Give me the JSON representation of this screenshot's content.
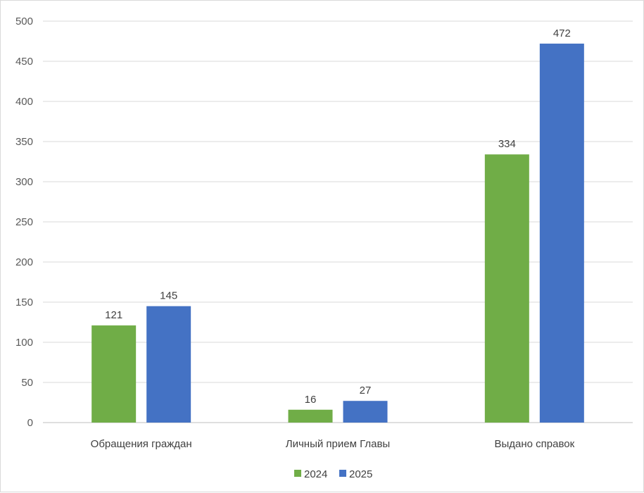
{
  "chart_data": {
    "type": "bar",
    "categories": [
      "Обращения граждан",
      "Личный прием Главы",
      "Выдано справок"
    ],
    "series": [
      {
        "name": "2024",
        "values": [
          121,
          16,
          334
        ],
        "color": "#70ad47"
      },
      {
        "name": "2025",
        "values": [
          145,
          27,
          472
        ],
        "color": "#4472c4"
      }
    ],
    "ylim": [
      0,
      500
    ],
    "yticks": [
      0,
      50,
      100,
      150,
      200,
      250,
      300,
      350,
      400,
      450,
      500
    ],
    "grid": true,
    "legend_position": "bottom",
    "title": "",
    "xlabel": "",
    "ylabel": ""
  }
}
